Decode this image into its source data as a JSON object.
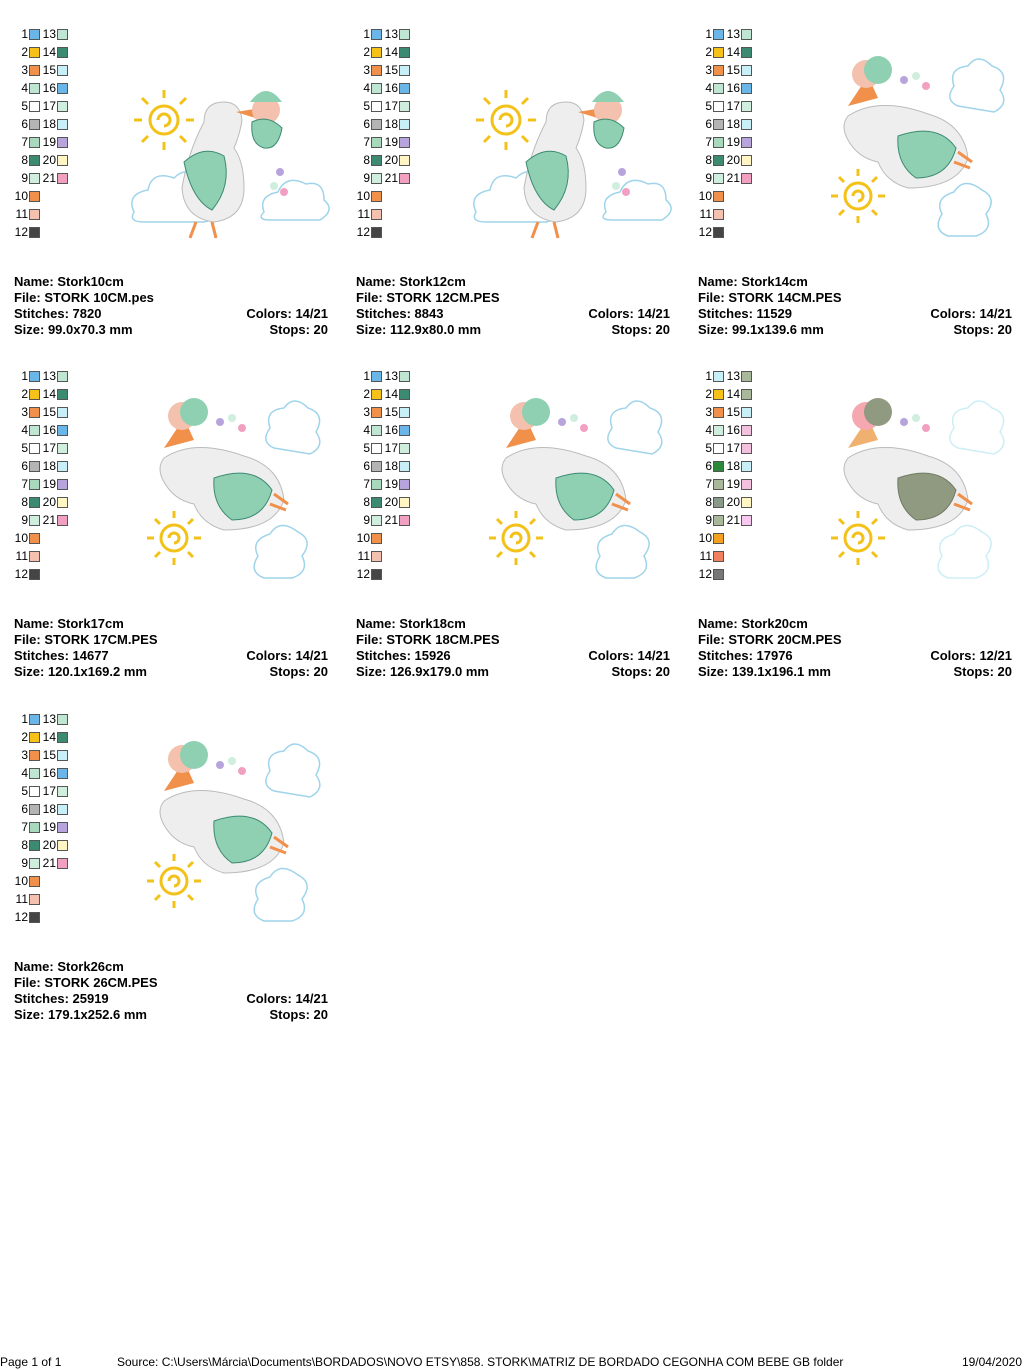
{
  "palette": {
    "light_blue": "#6ab6e8",
    "gold": "#f6c21a",
    "orange": "#f0904a",
    "mint": "#bfe6d2",
    "white": "#ffffff",
    "grey": "#b4b4b4",
    "sage": "#a9d9bd",
    "teal": "#3c8a72",
    "pale_mint": "#cfeedd",
    "peach": "#f3c1ad",
    "dark": "#454545",
    "pale_cyan": "#c8eef8",
    "lavender": "#b8a4dc",
    "cream": "#fff6c3",
    "pink": "#f2a0c2"
  },
  "designs": [
    {
      "name_label": "Name: Stork10cm",
      "file_label": "File: STORK 10CM.pes",
      "stitches_label": "Stitches: 7820",
      "colors_label": "Colors: 14/21",
      "size_label": "Size: 99.0x70.3 mm",
      "stops_label": "Stops: 20",
      "art_icon": "stork-flying-sun-left-icon",
      "swatch_colors": [
        "#6ab6e8",
        "#f6c21a",
        "#f0904a",
        "#bfe6d2",
        "#ffffff",
        "#b4b4b4",
        "#a9d9bd",
        "#3c8a72",
        "#cfeedd",
        "#f0904a",
        "#f3c1ad",
        "#454545",
        "#bfe6d2",
        "#3c8a72",
        "#c8eef8",
        "#6ab6e8",
        "#cfeedd",
        "#c8eef8",
        "#b8a4dc",
        "#fff6c3",
        "#f2a0c2"
      ]
    },
    {
      "name_label": "Name: Stork12cm",
      "file_label": "File: STORK 12CM.PES",
      "stitches_label": "Stitches: 8843",
      "colors_label": "Colors: 14/21",
      "size_label": "Size: 112.9x80.0 mm",
      "stops_label": "Stops: 20",
      "art_icon": "stork-flying-sun-left-icon",
      "swatch_colors": [
        "#6ab6e8",
        "#f6c21a",
        "#f0904a",
        "#bfe6d2",
        "#ffffff",
        "#b4b4b4",
        "#a9d9bd",
        "#3c8a72",
        "#cfeedd",
        "#f0904a",
        "#f3c1ad",
        "#454545",
        "#bfe6d2",
        "#3c8a72",
        "#c8eef8",
        "#6ab6e8",
        "#cfeedd",
        "#c8eef8",
        "#b8a4dc",
        "#fff6c3",
        "#f2a0c2"
      ]
    },
    {
      "name_label": "Name: Stork14cm",
      "file_label": "File: STORK 14CM.PES",
      "stitches_label": "Stitches: 11529",
      "colors_label": "Colors: 14/21",
      "size_label": "Size: 99.1x139.6 mm",
      "stops_label": "Stops: 20",
      "art_icon": "stork-vertical-icon",
      "swatch_colors": [
        "#6ab6e8",
        "#f6c21a",
        "#f0904a",
        "#bfe6d2",
        "#ffffff",
        "#b4b4b4",
        "#a9d9bd",
        "#3c8a72",
        "#cfeedd",
        "#f0904a",
        "#f3c1ad",
        "#454545",
        "#bfe6d2",
        "#3c8a72",
        "#c8eef8",
        "#6ab6e8",
        "#cfeedd",
        "#c8eef8",
        "#b8a4dc",
        "#fff6c3",
        "#f2a0c2"
      ]
    },
    {
      "name_label": "Name: Stork17cm",
      "file_label": "File: STORK 17CM.PES",
      "stitches_label": "Stitches: 14677",
      "colors_label": "Colors: 14/21",
      "size_label": "Size: 120.1x169.2 mm",
      "stops_label": "Stops: 20",
      "art_icon": "stork-vertical-icon",
      "swatch_colors": [
        "#6ab6e8",
        "#f6c21a",
        "#f0904a",
        "#bfe6d2",
        "#ffffff",
        "#b4b4b4",
        "#a9d9bd",
        "#3c8a72",
        "#cfeedd",
        "#f0904a",
        "#f3c1ad",
        "#454545",
        "#bfe6d2",
        "#3c8a72",
        "#c8eef8",
        "#6ab6e8",
        "#cfeedd",
        "#c8eef8",
        "#b8a4dc",
        "#fff6c3",
        "#f2a0c2"
      ]
    },
    {
      "name_label": "Name: Stork18cm",
      "file_label": "File: STORK 18CM.PES",
      "stitches_label": "Stitches: 15926",
      "colors_label": "Colors: 14/21",
      "size_label": "Size: 126.9x179.0 mm",
      "stops_label": "Stops: 20",
      "art_icon": "stork-vertical-icon",
      "swatch_colors": [
        "#6ab6e8",
        "#f6c21a",
        "#f0904a",
        "#bfe6d2",
        "#ffffff",
        "#b4b4b4",
        "#a9d9bd",
        "#3c8a72",
        "#cfeedd",
        "#f0904a",
        "#f3c1ad",
        "#454545",
        "#bfe6d2",
        "#3c8a72",
        "#c8eef8",
        "#6ab6e8",
        "#cfeedd",
        "#c8eef8",
        "#b8a4dc",
        "#fff6c3",
        "#f2a0c2"
      ]
    },
    {
      "name_label": "Name: Stork20cm",
      "file_label": "File: STORK 20CM.PES",
      "stitches_label": "Stitches: 17976",
      "colors_label": "Colors: 12/21",
      "size_label": "Size: 139.1x196.1 mm",
      "stops_label": "Stops: 20",
      "art_icon": "stork-vertical-muted-icon",
      "swatch_colors": [
        "#c8eef8",
        "#f6c21a",
        "#f0904a",
        "#cfeedd",
        "#ffffff",
        "#2a8a3a",
        "#a9b89a",
        "#8a9a88",
        "#a9b89a",
        "#f6a020",
        "#f08060",
        "#777777",
        "#a9b89a",
        "#a9b89a",
        "#c8eef8",
        "#f3c1dd",
        "#f3c1dd",
        "#c8eef8",
        "#f3c1dd",
        "#fff6c3",
        "#f8c8f0"
      ]
    },
    {
      "name_label": "Name: Stork26cm",
      "file_label": "File: STORK 26CM.PES",
      "stitches_label": "Stitches: 25919",
      "colors_label": "Colors: 14/21",
      "size_label": "Size: 179.1x252.6 mm",
      "stops_label": "Stops: 20",
      "art_icon": "stork-vertical-icon",
      "swatch_colors": [
        "#6ab6e8",
        "#f6c21a",
        "#f0904a",
        "#bfe6d2",
        "#ffffff",
        "#b4b4b4",
        "#a9d9bd",
        "#3c8a72",
        "#cfeedd",
        "#f0904a",
        "#f3c1ad",
        "#454545",
        "#bfe6d2",
        "#3c8a72",
        "#c8eef8",
        "#6ab6e8",
        "#cfeedd",
        "#c8eef8",
        "#b8a4dc",
        "#fff6c3",
        "#f2a0c2"
      ]
    }
  ],
  "swatch_numbers": [
    "1",
    "2",
    "3",
    "4",
    "5",
    "6",
    "7",
    "8",
    "9",
    "10",
    "11",
    "12",
    "13",
    "14",
    "15",
    "16",
    "17",
    "18",
    "19",
    "20",
    "21"
  ],
  "footer": {
    "page": "Page 1 of 1",
    "source": "Source: C:\\Users\\Márcia\\Documents\\BORDADOS\\NOVO ETSY\\858. STORK\\MATRIZ DE BORDADO CEGONHA COM BEBE GB folder",
    "date": "19/04/2020"
  }
}
